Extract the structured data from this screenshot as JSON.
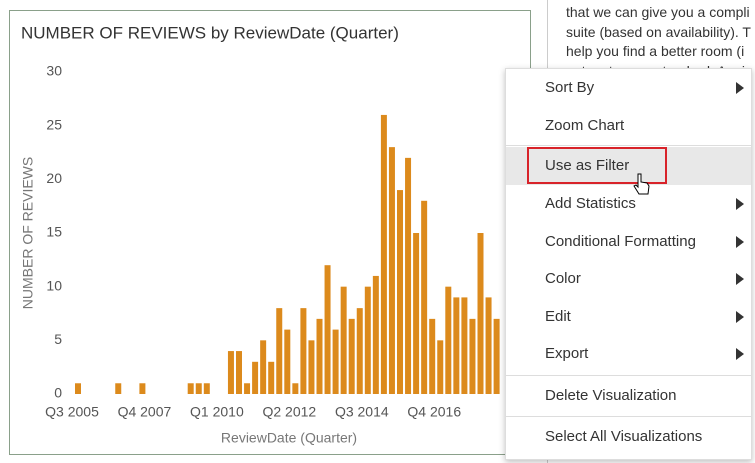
{
  "chart_data": {
    "type": "bar",
    "title": "NUMBER OF REVIEWS by ReviewDate (Quarter)",
    "xlabel": "ReviewDate (Quarter)",
    "ylabel": "NUMBER OF REVIEWS",
    "categories": [
      "Q3 2005",
      null,
      null,
      null,
      null,
      null,
      null,
      null,
      null,
      "Q4 2007",
      null,
      null,
      null,
      null,
      null,
      null,
      null,
      null,
      "Q1 2010",
      null,
      null,
      null,
      null,
      null,
      null,
      null,
      null,
      "Q2 2012",
      null,
      null,
      null,
      null,
      null,
      null,
      null,
      null,
      "Q3 2014",
      null,
      null,
      null,
      null,
      null,
      null,
      null,
      null,
      "Q4 2016",
      null,
      null,
      null,
      null,
      null,
      null,
      null
    ],
    "values": [
      1,
      0,
      0,
      0,
      0,
      1,
      0,
      0,
      1,
      0,
      0,
      0,
      0,
      0,
      1,
      1,
      1,
      0,
      0,
      4,
      4,
      1,
      3,
      5,
      3,
      8,
      6,
      1,
      8,
      5,
      7,
      12,
      6,
      10,
      7,
      8,
      10,
      11,
      26,
      23,
      19,
      22,
      15,
      18,
      7,
      5,
      10,
      9,
      9,
      7,
      15,
      9,
      7
    ],
    "color": "#dc8a1c",
    "ylim": [
      0,
      30
    ],
    "yticks": [
      0,
      5,
      10,
      15,
      20,
      25,
      30
    ],
    "grid": false
  },
  "background_text": [
    "that we can give you a compli",
    "suite (based on availability). T",
    "help you find a better room (i",
    "not up to your standard. Agai"
  ],
  "menu": {
    "highlighted": 2,
    "items": [
      {
        "label": "Sort By",
        "submenu": true
      },
      {
        "label": "Zoom Chart",
        "submenu": false
      },
      {
        "label": "Use as Filter",
        "submenu": false
      },
      {
        "label": "Add Statistics",
        "submenu": true
      },
      {
        "label": "Conditional Formatting",
        "submenu": true
      },
      {
        "label": "Color",
        "submenu": true
      },
      {
        "label": "Edit",
        "submenu": true
      },
      {
        "label": "Export",
        "submenu": true
      },
      {
        "label": "Delete Visualization",
        "submenu": false
      },
      {
        "label": "Select All Visualizations",
        "submenu": false
      }
    ]
  }
}
